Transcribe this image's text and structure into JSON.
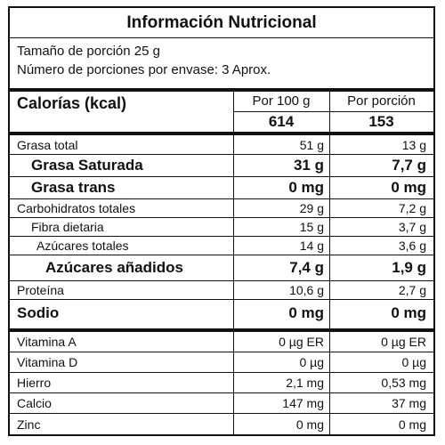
{
  "title": "Información Nutricional",
  "serving_size": "Tamaño de porción 25 g",
  "servings_per_container": "Número de porciones por envase: 3 Aprox.",
  "calories": {
    "label": "Calorías (kcal)",
    "col1_header": "Por 100 g",
    "col2_header": "Por porción",
    "col1_value": "614",
    "col2_value": "153"
  },
  "nutrients": [
    {
      "label": "Grasa total",
      "per100": "51 g",
      "perServing": "13 g"
    },
    {
      "label": "Grasa Saturada",
      "per100": "31 g",
      "perServing": "7,7 g"
    },
    {
      "label": "Grasa trans",
      "per100": "0 mg",
      "perServing": "0 mg"
    },
    {
      "label": "Carbohidratos totales",
      "per100": "29 g",
      "perServing": "7,2 g"
    },
    {
      "label": "Fibra dietaria",
      "per100": "15 g",
      "perServing": "3,7 g"
    },
    {
      "label": "Azúcares totales",
      "per100": "14 g",
      "perServing": "3,6 g"
    },
    {
      "label": "Azúcares añadidos",
      "per100": "7,4 g",
      "perServing": "1,9 g"
    },
    {
      "label": "Proteína",
      "per100": "10,6 g",
      "perServing": "2,7 g"
    },
    {
      "label": "Sodio",
      "per100": "0 mg",
      "perServing": "0 mg"
    }
  ],
  "micronutrients": [
    {
      "label": "Vitamina A",
      "per100": "0 µg ER",
      "perServing": "0 µg ER"
    },
    {
      "label": "Vitamina D",
      "per100": "0 µg",
      "perServing": "0 µg"
    },
    {
      "label": "Hierro",
      "per100": "2,1 mg",
      "perServing": "0,53 mg"
    },
    {
      "label": "Calcio",
      "per100": "147 mg",
      "perServing": "37 mg"
    },
    {
      "label": "Zinc",
      "per100": "0 mg",
      "perServing": "0 mg"
    }
  ]
}
